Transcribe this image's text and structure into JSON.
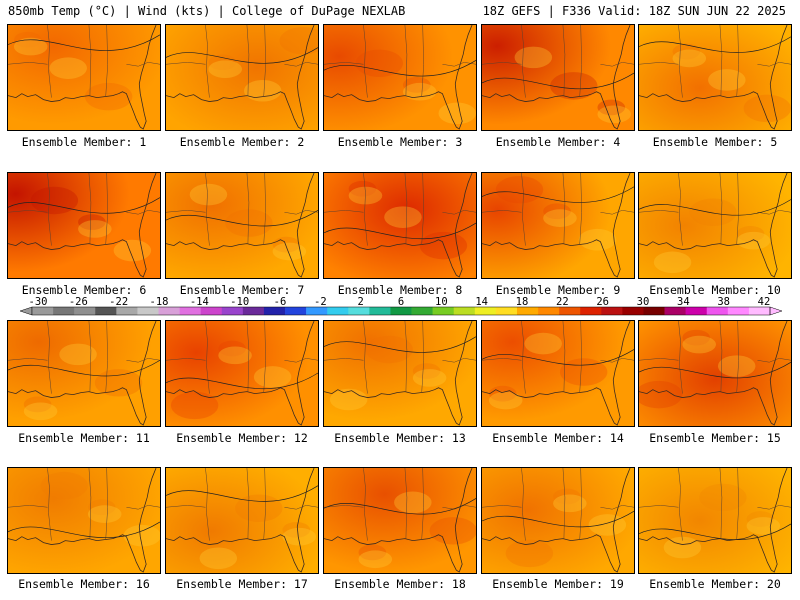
{
  "header": {
    "title": "850mb Temp (°C) | Wind (kts) | College of DuPage NEXLAB",
    "run": "18Z GEFS | F336 Valid: 18Z SUN JUN 22 2025"
  },
  "colorbar": {
    "ticks": [
      "-30",
      "-26",
      "-22",
      "-18",
      "-14",
      "-10",
      "-6",
      "-2",
      "2",
      "6",
      "10",
      "14",
      "18",
      "22",
      "26",
      "30",
      "34",
      "38",
      "42"
    ],
    "colors": [
      "#9a9a9a",
      "#777777",
      "#8f8f8f",
      "#555555",
      "#a8a8a8",
      "#c8c8c8",
      "#d8a0d8",
      "#e070e0",
      "#cc44cc",
      "#9944cc",
      "#6a2a9a",
      "#2222aa",
      "#2244dd",
      "#3399ff",
      "#33ccee",
      "#55dddd",
      "#22bb99",
      "#119944",
      "#33aa33",
      "#77cc22",
      "#bbdd22",
      "#eeee22",
      "#ffdd22",
      "#ffaa00",
      "#ff8800",
      "#ee5500",
      "#dd2200",
      "#bb1111",
      "#990000",
      "#770000",
      "#aa0066",
      "#cc00aa",
      "#ee55ee",
      "#ff88ff",
      "#ffbbff"
    ]
  },
  "members": [
    {
      "label": "Ensemble Member: 1",
      "tone": "#ff9a00",
      "hot": "#f26800",
      "spot": [
        0.3,
        0.2
      ]
    },
    {
      "label": "Ensemble Member: 2",
      "tone": "#ffa400",
      "hot": "#f07400",
      "spot": [
        0.6,
        0.4
      ]
    },
    {
      "label": "Ensemble Member: 3",
      "tone": "#ff9200",
      "hot": "#e84a00",
      "spot": [
        0.1,
        0.3
      ]
    },
    {
      "label": "Ensemble Member: 4",
      "tone": "#ff8800",
      "hot": "#cc1f00",
      "spot": [
        0.1,
        0.2
      ]
    },
    {
      "label": "Ensemble Member: 5",
      "tone": "#ffb000",
      "hot": "#f27000",
      "spot": [
        0.4,
        0.6
      ]
    },
    {
      "label": "Ensemble Member: 6",
      "tone": "#ff7a00",
      "hot": "#c41400",
      "spot": [
        0.05,
        0.2
      ]
    },
    {
      "label": "Ensemble Member: 7",
      "tone": "#ffa800",
      "hot": "#f07000",
      "spot": [
        0.3,
        0.3
      ]
    },
    {
      "label": "Ensemble Member: 8",
      "tone": "#ff8200",
      "hot": "#dd2a00",
      "spot": [
        0.55,
        0.35
      ]
    },
    {
      "label": "Ensemble Member: 9",
      "tone": "#ffa600",
      "hot": "#e84400",
      "spot": [
        0.1,
        0.35
      ]
    },
    {
      "label": "Ensemble Member: 10",
      "tone": "#ffb400",
      "hot": "#f28200",
      "spot": [
        0.3,
        0.5
      ]
    },
    {
      "label": "Ensemble Member: 11",
      "tone": "#ffa000",
      "hot": "#ee6a00",
      "spot": [
        0.2,
        0.2
      ]
    },
    {
      "label": "Ensemble Member: 12",
      "tone": "#ff9000",
      "hot": "#e84200",
      "spot": [
        0.2,
        0.3
      ]
    },
    {
      "label": "Ensemble Member: 13",
      "tone": "#ffa800",
      "hot": "#f07000",
      "spot": [
        0.3,
        0.2
      ]
    },
    {
      "label": "Ensemble Member: 14",
      "tone": "#ff9a00",
      "hot": "#ec4e00",
      "spot": [
        0.2,
        0.2
      ]
    },
    {
      "label": "Ensemble Member: 15",
      "tone": "#ff9400",
      "hot": "#e24000",
      "spot": [
        0.5,
        0.55
      ]
    },
    {
      "label": "Ensemble Member: 16",
      "tone": "#ffa600",
      "hot": "#f07c00",
      "spot": [
        0.3,
        0.3
      ]
    },
    {
      "label": "Ensemble Member: 17",
      "tone": "#ffae00",
      "hot": "#f07a00",
      "spot": [
        0.3,
        0.6
      ]
    },
    {
      "label": "Ensemble Member: 18",
      "tone": "#ff9600",
      "hot": "#e85000",
      "spot": [
        0.4,
        0.25
      ]
    },
    {
      "label": "Ensemble Member: 19",
      "tone": "#ffa800",
      "hot": "#f07200",
      "spot": [
        0.3,
        0.4
      ]
    },
    {
      "label": "Ensemble Member: 20",
      "tone": "#ffb400",
      "hot": "#f28600",
      "spot": [
        0.4,
        0.5
      ]
    }
  ]
}
